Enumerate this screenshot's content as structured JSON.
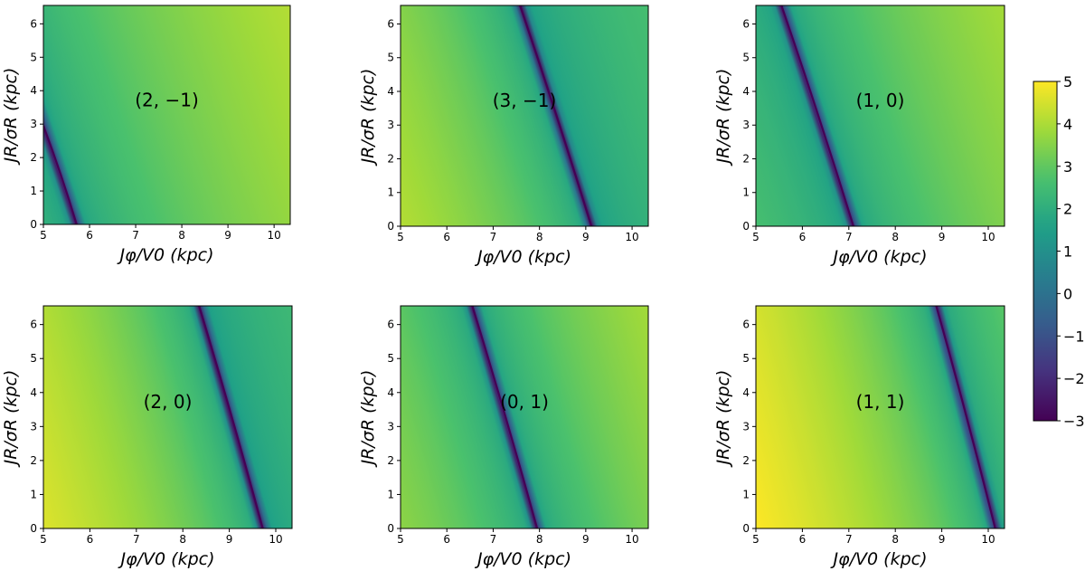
{
  "chart_data": [
    {
      "type": "heatmap",
      "title": "(2, −1)",
      "xlabel": "Jφ/V0 (kpc)",
      "ylabel": "JR/σR (kpc)",
      "xlim": [
        5,
        10.35
      ],
      "ylim": [
        0,
        6.55
      ],
      "xticks": [
        5,
        6,
        7,
        8,
        9,
        10
      ],
      "yticks": [
        0,
        1,
        2,
        3,
        4,
        5,
        6
      ],
      "resonance_line": [
        [
          5.0,
          2.95
        ],
        [
          5.72,
          0
        ]
      ],
      "background_value_left": 2.1,
      "background_value_right": 4.1
    },
    {
      "type": "heatmap",
      "title": "(3, −1)",
      "xlabel": "Jφ/V0 (kpc)",
      "ylabel": "JR/σR (kpc)",
      "xlim": [
        5,
        10.35
      ],
      "ylim": [
        0,
        6.55
      ],
      "xticks": [
        5,
        6,
        7,
        8,
        9,
        10
      ],
      "yticks": [
        0,
        1,
        2,
        3,
        4,
        5,
        6
      ],
      "resonance_line": [
        [
          7.58,
          6.55
        ],
        [
          9.12,
          0
        ]
      ],
      "background_value_left": 4.1,
      "background_value_right": 2.6
    },
    {
      "type": "heatmap",
      "title": "(1, 0)",
      "xlabel": "Jφ/V0 (kpc)",
      "ylabel": "JR/σR (kpc)",
      "xlim": [
        5,
        10.35
      ],
      "ylim": [
        0,
        6.55
      ],
      "xticks": [
        5,
        6,
        7,
        8,
        9,
        10
      ],
      "yticks": [
        0,
        1,
        2,
        3,
        4,
        5,
        6
      ],
      "resonance_line": [
        [
          5.55,
          6.55
        ],
        [
          7.1,
          0
        ]
      ],
      "background_value_left": 2.6,
      "background_value_right": 3.9
    },
    {
      "type": "heatmap",
      "title": "(2, 0)",
      "xlabel": "Jφ/V0 (kpc)",
      "ylabel": "JR/σR (kpc)",
      "xlim": [
        5,
        10.35
      ],
      "ylim": [
        0,
        6.55
      ],
      "xticks": [
        5,
        6,
        7,
        8,
        9,
        10
      ],
      "yticks": [
        0,
        1,
        2,
        3,
        4,
        5,
        6
      ],
      "resonance_line": [
        [
          8.35,
          6.55
        ],
        [
          9.72,
          0
        ]
      ],
      "background_value_left": 4.6,
      "background_value_right": 2.4
    },
    {
      "type": "heatmap",
      "title": "(0, 1)",
      "xlabel": "Jφ/V0 (kpc)",
      "ylabel": "JR/σR (kpc)",
      "xlim": [
        5,
        10.35
      ],
      "ylim": [
        0,
        6.55
      ],
      "xticks": [
        5,
        6,
        7,
        8,
        9,
        10
      ],
      "yticks": [
        0,
        1,
        2,
        3,
        4,
        5,
        6
      ],
      "resonance_line": [
        [
          6.55,
          6.55
        ],
        [
          7.95,
          0
        ]
      ],
      "background_value_left": 3.6,
      "background_value_right": 3.9
    },
    {
      "type": "heatmap",
      "title": "(1, 1)",
      "xlabel": "Jφ/V0 (kpc)",
      "ylabel": "JR/σR (kpc)",
      "xlim": [
        5,
        10.35
      ],
      "ylim": [
        0,
        6.55
      ],
      "xticks": [
        5,
        6,
        7,
        8,
        9,
        10
      ],
      "yticks": [
        0,
        1,
        2,
        3,
        4,
        5,
        6
      ],
      "resonance_line": [
        [
          8.88,
          6.55
        ],
        [
          10.15,
          0
        ]
      ],
      "background_value_left": 5.0,
      "background_value_right": 2.9
    }
  ],
  "colorbar": {
    "min": -3,
    "max": 5,
    "ticks": [
      -3,
      -2,
      -1,
      0,
      1,
      2,
      3,
      4,
      5
    ],
    "tick_labels": [
      "−3",
      "−2",
      "−1",
      "0",
      "1",
      "2",
      "3",
      "4",
      "5"
    ],
    "colormap": "viridis"
  },
  "colors": {
    "viridis_0": "#440154",
    "viridis_1": "#46327e",
    "viridis_2": "#365c8d",
    "viridis_3": "#277f8e",
    "viridis_4": "#1fa187",
    "viridis_5": "#4ac16d",
    "viridis_6": "#a0da39",
    "viridis_7": "#fde725"
  }
}
